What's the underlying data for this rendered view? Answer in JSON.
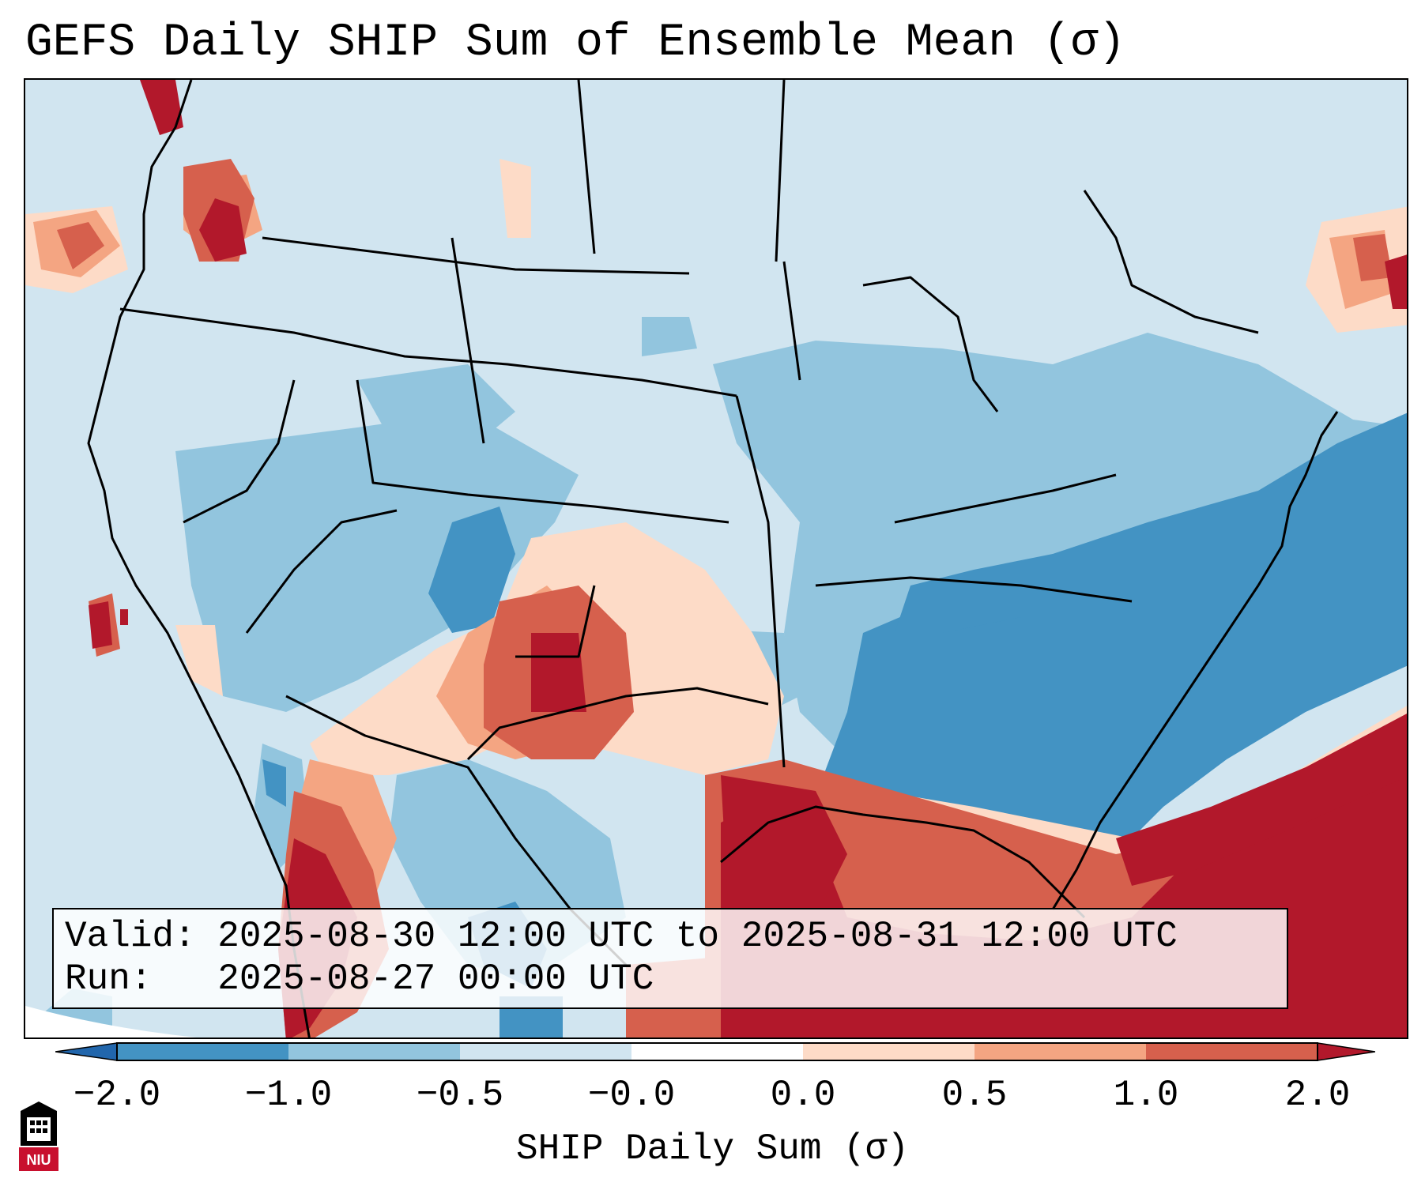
{
  "title": "GEFS Daily SHIP Sum of Ensemble Mean (σ)",
  "info": {
    "valid": "Valid: 2025-08-30 12:00 UTC to 2025-08-31 12:00 UTC",
    "run": "Run:   2025-08-27 00:00 UTC"
  },
  "colorbar": {
    "label": "SHIP Daily Sum (σ)",
    "ticks": [
      "−2.0",
      "−1.0",
      "−0.5",
      "−0.0",
      "0.0",
      "0.5",
      "1.0",
      "2.0"
    ],
    "bins": [
      {
        "range": "< -2.0",
        "color": "#2166ac"
      },
      {
        "range": "-2.0 to -1.0",
        "color": "#4393c3"
      },
      {
        "range": "-1.0 to -0.5",
        "color": "#92c5de"
      },
      {
        "range": "-0.5 to -0.0",
        "color": "#d1e5f0"
      },
      {
        "range": "-0.0 to 0.0",
        "color": "#ffffff"
      },
      {
        "range": "0.0 to 0.5",
        "color": "#fddbc7"
      },
      {
        "range": "0.5 to 1.0",
        "color": "#f4a582"
      },
      {
        "range": "1.0 to 2.0",
        "color": "#d6604d"
      },
      {
        "range": "> 2.0",
        "color": "#b2182b"
      }
    ]
  },
  "logo": {
    "text": "NIU"
  }
}
